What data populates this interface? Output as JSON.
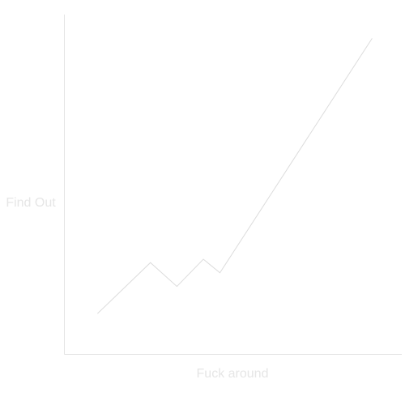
{
  "chart_data": {
    "type": "line",
    "title": "",
    "xlabel": "Fuck around",
    "ylabel": "Find Out",
    "xlim": [
      0,
      10
    ],
    "ylim": [
      0,
      10
    ],
    "grid": false,
    "legend": "none",
    "series": [
      {
        "x": [
          1,
          2.6,
          3.4,
          4.2,
          4.7,
          9.3
        ],
        "y": [
          1.2,
          2.7,
          2.0,
          2.8,
          2.4,
          9.3
        ]
      }
    ],
    "colors": {
      "axis": "#e4e4e4",
      "line": "#dcdcdc",
      "label": "#e6e6e6"
    }
  }
}
